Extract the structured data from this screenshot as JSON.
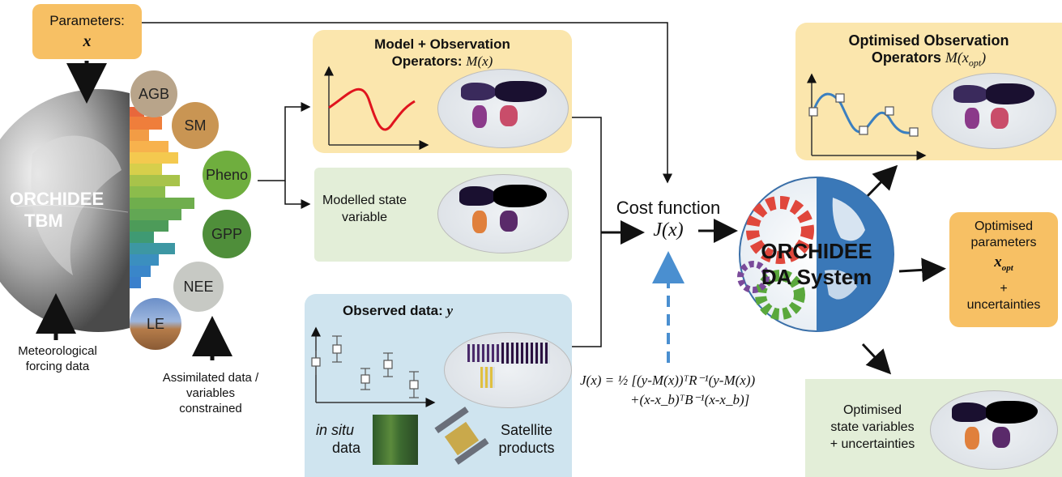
{
  "parameters": {
    "label": "Parameters:",
    "symbol": "x"
  },
  "orchidee_tbm": {
    "line1": "ORCHIDEE",
    "line2": "TBM"
  },
  "forcing": {
    "line1": "Meteorological",
    "line2": "forcing data"
  },
  "assimilated": {
    "line1": "Assimilated data /",
    "line2": "variables",
    "line3": "constrained"
  },
  "variables": [
    "AGB",
    "SM",
    "Pheno",
    "GPP",
    "NEE",
    "LE"
  ],
  "model_box": {
    "title_line1": "Model + Observation",
    "title_line2": "Operators: ",
    "symbol": "M(x)"
  },
  "modelled_box": {
    "line1": "Modelled state",
    "line2": "variable"
  },
  "observed_box": {
    "title": "Observed data: ",
    "symbol": "y",
    "insitu_italic": "in situ",
    "insitu_rest": "data",
    "sat_line1": "Satellite",
    "sat_line2": "products"
  },
  "cost": {
    "label": "Cost function",
    "symbol": "J(x)"
  },
  "equation": {
    "line1": "J(x) = ½ [(y-M(x))ᵀR⁻¹(y-M(x))",
    "line2": "+(x-x_b)ᵀB⁻¹(x-x_b)]"
  },
  "da_system": {
    "line1": "ORCHIDEE",
    "line2": "DA System"
  },
  "opt_obs": {
    "line1": "Optimised Observation",
    "line2": "Operators ",
    "symbol": "M(x",
    "sub": "opt",
    "close": ")"
  },
  "opt_params": {
    "line1": "Optimised",
    "line2": "parameters",
    "symbol": "x",
    "sub": "opt",
    "plus": "+",
    "line4": "uncertainties"
  },
  "opt_state": {
    "line1": "Optimised",
    "line2": "state variables",
    "line3": "+ uncertainties"
  },
  "colors": {
    "yellow_box": "#fbe6ad",
    "green_box": "#e3eed8",
    "blue_box": "#cfe4ef",
    "orange_box": "#f7c064",
    "model_curve": "#e0141e",
    "opt_curve": "#3a7fc0",
    "dashed_arrow": "#4a8fd0"
  }
}
